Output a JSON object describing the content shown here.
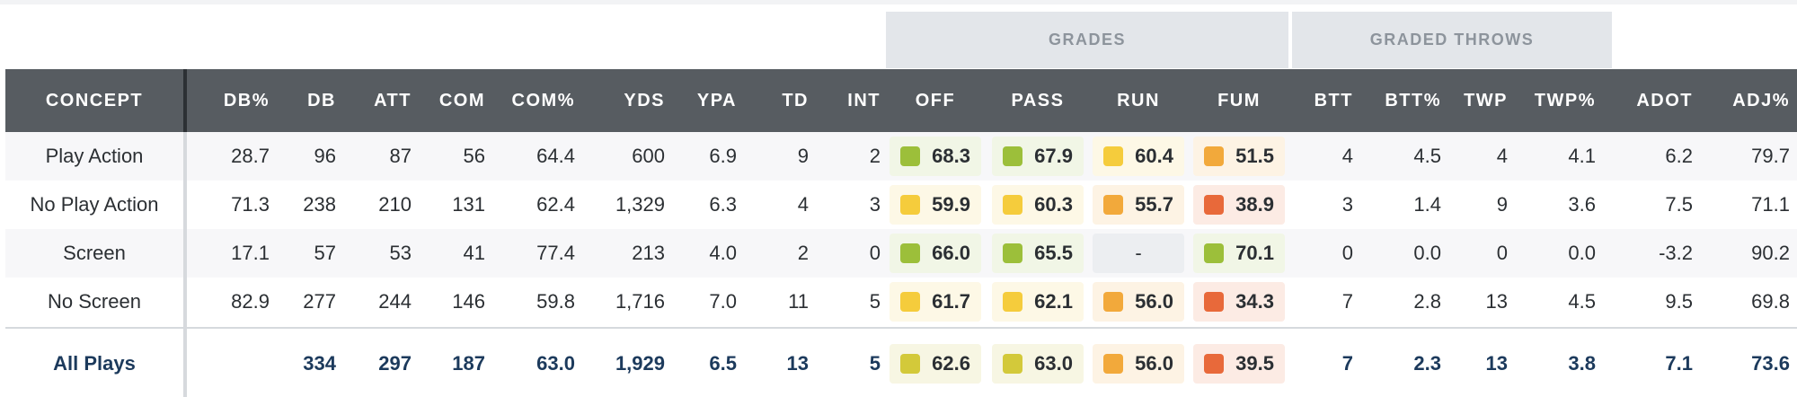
{
  "groups": {
    "grades": "GRADES",
    "graded_throws": "GRADED THROWS"
  },
  "headers": {
    "concept": "CONCEPT",
    "db_pct": "DB%",
    "db": "DB",
    "att": "ATT",
    "com": "COM",
    "com_pct": "COM%",
    "yds": "YDS",
    "ypa": "YPA",
    "td": "TD",
    "int": "INT",
    "off": "OFF",
    "pass": "PASS",
    "run": "RUN",
    "fum": "FUM",
    "btt": "BTT",
    "btt_pct": "BTT%",
    "twp": "TWP",
    "twp_pct": "TWP%",
    "adot": "ADOT",
    "adj_pct": "ADJ%"
  },
  "grade_colors": {
    "green": "#9cbf3a",
    "yellowgreen": "#d3c93a",
    "yellow": "#f5cc3c",
    "orange": "#f2a93b",
    "redorange": "#e8693a",
    "green_bg": "#f1f6e6",
    "yellowgreen_bg": "#f7f6e3",
    "yellow_bg": "#fdf8e6",
    "orange_bg": "#fdf3e4",
    "redorange_bg": "#fcebe4",
    "none_bg": "#eceef1"
  },
  "rows": [
    {
      "concept": "Play Action",
      "db_pct": "28.7",
      "db": "96",
      "att": "87",
      "com": "56",
      "com_pct": "64.4",
      "yds": "600",
      "ypa": "6.9",
      "td": "9",
      "int": "2",
      "off": "68.3",
      "pass": "67.9",
      "run": "60.4",
      "fum": "51.5",
      "btt": "4",
      "btt_pct": "4.5",
      "twp": "4",
      "twp_pct": "4.1",
      "adot": "6.2",
      "adj_pct": "79.7"
    },
    {
      "concept": "No Play Action",
      "db_pct": "71.3",
      "db": "238",
      "att": "210",
      "com": "131",
      "com_pct": "62.4",
      "yds": "1,329",
      "ypa": "6.3",
      "td": "4",
      "int": "3",
      "off": "59.9",
      "pass": "60.3",
      "run": "55.7",
      "fum": "38.9",
      "btt": "3",
      "btt_pct": "1.4",
      "twp": "9",
      "twp_pct": "3.6",
      "adot": "7.5",
      "adj_pct": "71.1"
    },
    {
      "concept": "Screen",
      "db_pct": "17.1",
      "db": "57",
      "att": "53",
      "com": "41",
      "com_pct": "77.4",
      "yds": "213",
      "ypa": "4.0",
      "td": "2",
      "int": "0",
      "off": "66.0",
      "pass": "65.5",
      "run": "-",
      "fum": "70.1",
      "btt": "0",
      "btt_pct": "0.0",
      "twp": "0",
      "twp_pct": "0.0",
      "adot": "-3.2",
      "adj_pct": "90.2"
    },
    {
      "concept": "No Screen",
      "db_pct": "82.9",
      "db": "277",
      "att": "244",
      "com": "146",
      "com_pct": "59.8",
      "yds": "1,716",
      "ypa": "7.0",
      "td": "11",
      "int": "5",
      "off": "61.7",
      "pass": "62.1",
      "run": "56.0",
      "fum": "34.3",
      "btt": "7",
      "btt_pct": "2.8",
      "twp": "13",
      "twp_pct": "4.5",
      "adot": "9.5",
      "adj_pct": "69.8"
    }
  ],
  "total": {
    "concept": "All Plays",
    "db_pct": "",
    "db": "334",
    "att": "297",
    "com": "187",
    "com_pct": "63.0",
    "yds": "1,929",
    "ypa": "6.5",
    "td": "13",
    "int": "5",
    "off": "62.6",
    "pass": "63.0",
    "run": "56.0",
    "fum": "39.5",
    "btt": "7",
    "btt_pct": "2.3",
    "twp": "13",
    "twp_pct": "3.8",
    "adot": "7.1",
    "adj_pct": "73.6"
  }
}
